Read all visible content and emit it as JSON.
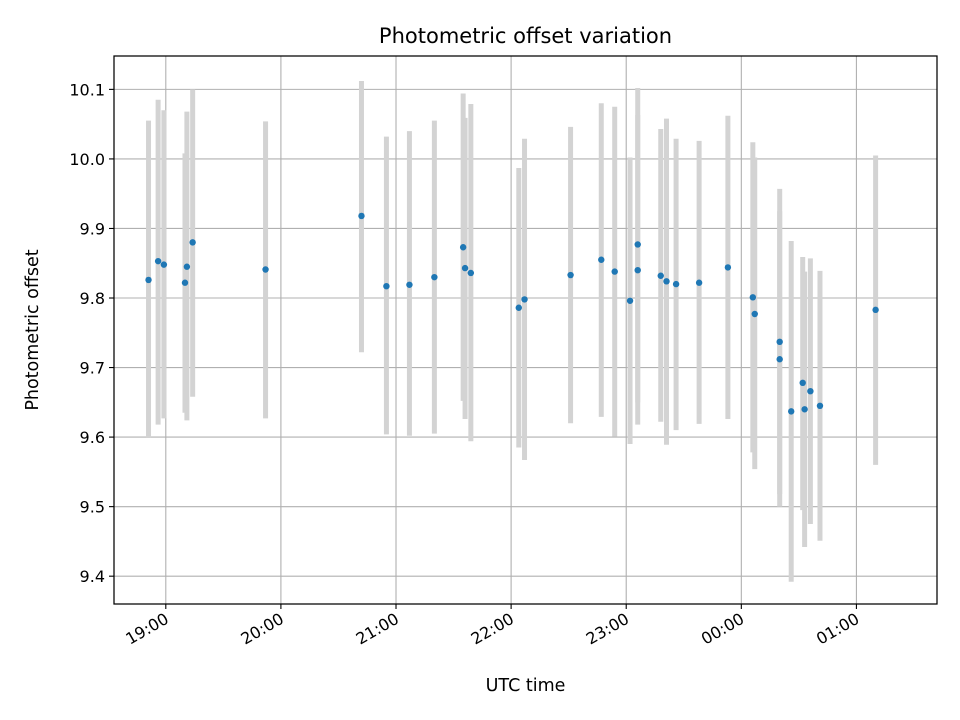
{
  "chart_data": {
    "type": "scatter",
    "title": "Photometric offset variation",
    "xlabel": "UTC time",
    "ylabel": "Photometric offset",
    "grid": true,
    "legend": "none",
    "colors": {
      "marker": "#1f77b4",
      "errorbar": "#d3d3d3",
      "grid": "#b0b0b0"
    },
    "xlim": [
      "18:33",
      "01:42"
    ],
    "ylim": [
      9.36,
      10.148
    ],
    "x_ticks": [
      "19:00",
      "20:00",
      "21:00",
      "22:00",
      "23:00",
      "00:00",
      "01:00"
    ],
    "y_ticks": [
      9.4,
      9.5,
      9.6,
      9.7,
      9.8,
      9.9,
      10.0,
      10.1
    ],
    "y_tick_labels": [
      "9.4",
      "9.5",
      "9.6",
      "9.7",
      "9.8",
      "9.9",
      "10.0",
      "10.1"
    ],
    "points": [
      {
        "t": "18:51",
        "y": 9.826,
        "lo": 9.6,
        "hi": 10.055
      },
      {
        "t": "18:56",
        "y": 9.853,
        "lo": 9.618,
        "hi": 10.085
      },
      {
        "t": "19:11",
        "y": 9.845,
        "lo": 9.624,
        "hi": 10.068
      },
      {
        "t": "18:59",
        "y": 9.848,
        "lo": 9.627,
        "hi": 10.07
      },
      {
        "t": "19:10",
        "y": 9.822,
        "lo": 9.635,
        "hi": 10.008
      },
      {
        "t": "19:14",
        "y": 9.88,
        "lo": 9.658,
        "hi": 10.1
      },
      {
        "t": "19:52",
        "y": 9.841,
        "lo": 9.627,
        "hi": 10.054
      },
      {
        "t": "20:42",
        "y": 9.918,
        "lo": 9.722,
        "hi": 10.112
      },
      {
        "t": "20:55",
        "y": 9.817,
        "lo": 9.604,
        "hi": 10.032
      },
      {
        "t": "21:07",
        "y": 9.819,
        "lo": 9.602,
        "hi": 10.04
      },
      {
        "t": "21:20",
        "y": 9.83,
        "lo": 9.605,
        "hi": 10.055
      },
      {
        "t": "21:35",
        "y": 9.873,
        "lo": 9.652,
        "hi": 10.094
      },
      {
        "t": "21:36",
        "y": 9.843,
        "lo": 9.626,
        "hi": 10.059
      },
      {
        "t": "21:39",
        "y": 9.836,
        "lo": 9.594,
        "hi": 10.079
      },
      {
        "t": "22:04",
        "y": 9.786,
        "lo": 9.585,
        "hi": 9.987
      },
      {
        "t": "22:07",
        "y": 9.798,
        "lo": 9.567,
        "hi": 10.029
      },
      {
        "t": "22:31",
        "y": 9.833,
        "lo": 9.62,
        "hi": 10.046
      },
      {
        "t": "22:47",
        "y": 9.855,
        "lo": 9.629,
        "hi": 10.08
      },
      {
        "t": "22:54",
        "y": 9.838,
        "lo": 9.601,
        "hi": 10.075
      },
      {
        "t": "23:02",
        "y": 9.796,
        "lo": 9.59,
        "hi": 10.002
      },
      {
        "t": "23:06",
        "y": 9.877,
        "lo": 9.65,
        "hi": 10.102
      },
      {
        "t": "23:06",
        "y": 9.84,
        "lo": 9.618,
        "hi": 10.063
      },
      {
        "t": "23:18",
        "y": 9.832,
        "lo": 9.622,
        "hi": 10.043
      },
      {
        "t": "23:21",
        "y": 9.824,
        "lo": 9.589,
        "hi": 10.058
      },
      {
        "t": "23:26",
        "y": 9.82,
        "lo": 9.61,
        "hi": 10.029
      },
      {
        "t": "23:38",
        "y": 9.822,
        "lo": 9.619,
        "hi": 10.026
      },
      {
        "t": "23:53",
        "y": 9.844,
        "lo": 9.626,
        "hi": 10.062
      },
      {
        "t": "00:06",
        "y": 9.801,
        "lo": 9.578,
        "hi": 10.024
      },
      {
        "t": "00:07",
        "y": 9.777,
        "lo": 9.554,
        "hi": 10.002
      },
      {
        "t": "00:20",
        "y": 9.737,
        "lo": 9.518,
        "hi": 9.957
      },
      {
        "t": "00:20",
        "y": 9.712,
        "lo": 9.5,
        "hi": 9.925
      },
      {
        "t": "00:26",
        "y": 9.637,
        "lo": 9.392,
        "hi": 9.882
      },
      {
        "t": "00:32",
        "y": 9.678,
        "lo": 9.495,
        "hi": 9.859
      },
      {
        "t": "00:33",
        "y": 9.64,
        "lo": 9.442,
        "hi": 9.838
      },
      {
        "t": "00:36",
        "y": 9.666,
        "lo": 9.475,
        "hi": 9.857
      },
      {
        "t": "00:41",
        "y": 9.645,
        "lo": 9.451,
        "hi": 9.839
      },
      {
        "t": "01:10",
        "y": 9.783,
        "lo": 9.56,
        "hi": 10.005
      }
    ]
  }
}
